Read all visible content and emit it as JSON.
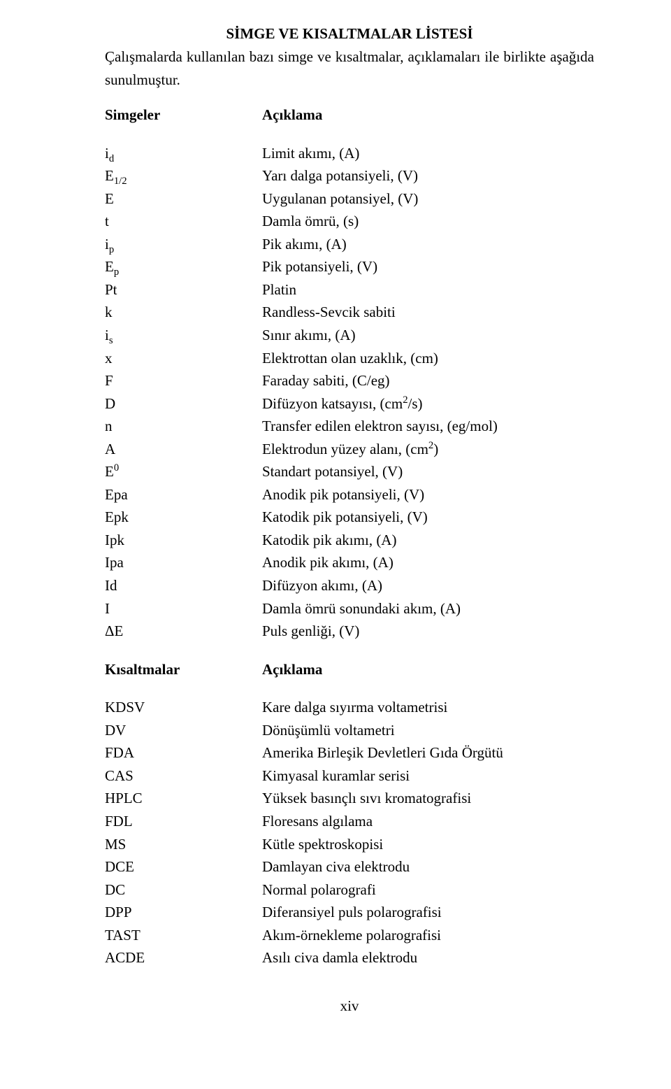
{
  "heading": "SİMGE VE KISALTMALAR LİSTESİ",
  "intro_line1": "Çalışmalarda kullanılan bazı simge ve kısaltmalar, açıklamaları ile birlikte aşağıda",
  "intro_line2": "sunulmuştur.",
  "label_simgeler": "Simgeler",
  "label_aciklama": "Açıklama",
  "label_kisaltmalar": "Kısaltmalar",
  "label_aciklama2": "Açıklama",
  "symbols": [
    {
      "sym": "i<sub>d</sub>",
      "desc": "Limit akımı, (A)"
    },
    {
      "sym": "E<sub>1/2</sub>",
      "desc": "Yarı dalga potansiyeli, (V)"
    },
    {
      "sym": "E",
      "desc": "Uygulanan potansiyel, (V)"
    },
    {
      "sym": "t",
      "desc": "Damla ömrü, (s)"
    },
    {
      "sym": "i<sub>p</sub>",
      "desc": "Pik akımı, (A)"
    },
    {
      "sym": "E<sub>p</sub>",
      "desc": "Pik potansiyeli, (V)"
    },
    {
      "sym": "Pt",
      "desc": "Platin"
    },
    {
      "sym": "k",
      "desc": "Randless-Sevcik sabiti"
    },
    {
      "sym": "i<sub>s</sub>",
      "desc": "Sınır akımı, (A)"
    },
    {
      "sym": "x",
      "desc": "Elektrottan olan uzaklık, (cm)"
    },
    {
      "sym": "F",
      "desc": "Faraday sabiti, (C/eg)"
    },
    {
      "sym": "D",
      "desc": "Difüzyon katsayısı, (cm<sup>2</sup>/s)"
    },
    {
      "sym": "n",
      "desc": "Transfer edilen elektron sayısı, (eg/mol)"
    },
    {
      "sym": "A",
      "desc": "Elektrodun yüzey alanı, (cm<sup>2</sup>)"
    },
    {
      "sym": "E<sup>0</sup>",
      "desc": "Standart potansiyel, (V)"
    },
    {
      "sym": "Epa",
      "desc": "Anodik pik potansiyeli, (V)"
    },
    {
      "sym": "Epk",
      "desc": "Katodik pik potansiyeli, (V)"
    },
    {
      "sym": "Ipk",
      "desc": "Katodik pik akımı, (A)"
    },
    {
      "sym": "Ipa",
      "desc": "Anodik pik akımı, (A)"
    },
    {
      "sym": "Id",
      "desc": "Difüzyon akımı, (A)"
    },
    {
      "sym": "I",
      "desc": "Damla ömrü sonundaki akım, (A)"
    },
    {
      "sym": "ΔE",
      "desc": "Puls genliği, (V)"
    }
  ],
  "abbreviations": [
    {
      "sym": "KDSV",
      "desc": "Kare dalga sıyırma voltametrisi"
    },
    {
      "sym": "DV",
      "desc": "Dönüşümlü voltametri"
    },
    {
      "sym": "FDA",
      "desc": "Amerika Birleşik Devletleri Gıda Örgütü"
    },
    {
      "sym": "CAS",
      "desc": "Kimyasal kuramlar serisi"
    },
    {
      "sym": "HPLC",
      "desc": "Yüksek basınçlı sıvı kromatografisi"
    },
    {
      "sym": "FDL",
      "desc": "Floresans algılama"
    },
    {
      "sym": "MS",
      "desc": "Kütle spektroskopisi"
    },
    {
      "sym": "DCE",
      "desc": "Damlayan civa elektrodu"
    },
    {
      "sym": "DC",
      "desc": "Normal polarografi"
    },
    {
      "sym": "DPP",
      "desc": "Diferansiyel puls polarografisi"
    },
    {
      "sym": "TAST",
      "desc": "Akım-örnekleme polarografisi"
    },
    {
      "sym": "ACDE",
      "desc": "Asılı civa damla elektrodu"
    }
  ],
  "footer": "xiv"
}
